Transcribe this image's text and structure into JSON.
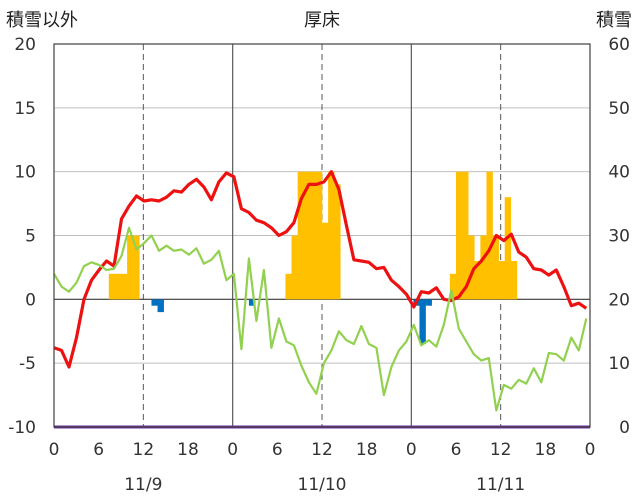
{
  "chart_data": {
    "type": "bar+line",
    "title": "厚床",
    "ylabel_left": "積雪以外",
    "ylabel_right": "積雪",
    "ylim_left": [
      -10,
      20
    ],
    "ylim_right": [
      0,
      60
    ],
    "left_ticks": [
      "20",
      "15",
      "10",
      "5",
      "0",
      "-5",
      "-10"
    ],
    "right_ticks": [
      "60",
      "50",
      "40",
      "30",
      "20",
      "10",
      "0"
    ],
    "x_ticks": [
      "0",
      "6",
      "12",
      "18",
      "0",
      "6",
      "12",
      "18",
      "0",
      "6",
      "12",
      "18",
      "0"
    ],
    "day_labels": [
      "11/9",
      "11/10",
      "11/11"
    ],
    "grid": "dashed vertical at 12h, solid at day boundaries",
    "colors": {
      "red": "#ee1111",
      "green": "#92d050",
      "orange": "#ffc000",
      "blue": "#0070c0",
      "purple": "#7030a0"
    },
    "series": [
      {
        "color": "red",
        "axis": "left",
        "values": [
          -3.8,
          -4,
          -5.3,
          -3,
          0,
          1.5,
          2.3,
          3,
          2.6,
          6.3,
          7.3,
          8.1,
          7.7,
          7.8,
          7.7,
          8,
          8.5,
          8.4,
          9,
          9.4,
          8.8,
          7.8,
          9.2,
          9.9,
          9.6,
          7.1,
          6.8,
          6.2,
          6,
          5.6,
          5,
          5.3,
          6,
          7.9,
          9,
          9,
          9.2,
          10,
          8.6,
          5.8,
          3.1,
          3,
          2.9,
          2.4,
          2.5,
          1.5,
          1,
          0.4,
          -0.6,
          0.6,
          0.5,
          0.9,
          0,
          -0.1,
          0.2,
          1,
          2.4,
          3,
          3.8,
          5,
          4.6,
          5.1,
          3.7,
          3.3,
          2.4,
          2.3,
          1.9,
          2.3,
          1,
          -0.5,
          -0.3,
          -0.7
        ]
      },
      {
        "color": "green",
        "axis": "left",
        "values": [
          2,
          1,
          0.6,
          1.3,
          2.6,
          2.9,
          2.7,
          2.3,
          2.4,
          3.4,
          5.6,
          3.9,
          4.4,
          5,
          3.8,
          4.2,
          3.8,
          3.9,
          3.5,
          4,
          2.8,
          3.1,
          3.8,
          1.5,
          2,
          -3.9,
          3.2,
          -1.7,
          2.3,
          -3.8,
          -1.5,
          -3.3,
          -3.6,
          -5.2,
          -6.5,
          -7.4,
          -5,
          -4,
          -2.5,
          -3.2,
          -3.5,
          -2.1,
          -3.5,
          -3.8,
          -7.5,
          -5.3,
          -4,
          -3.3,
          -2,
          -3.6,
          -3.2,
          -3.7,
          -2,
          0.7,
          -2.3,
          -3.3,
          -4.3,
          -4.8,
          -4.6,
          -8.7,
          -6.7,
          -7,
          -6.3,
          -6.6,
          -5.4,
          -6.5,
          -4.2,
          -4.3,
          -4.8,
          -3,
          -4,
          -1.5
        ]
      },
      {
        "color": "orange",
        "axis": "right",
        "values": [
          0,
          0,
          0,
          0,
          0,
          0,
          0,
          0,
          0,
          24,
          24,
          24,
          30,
          30,
          0,
          0,
          0,
          0,
          0,
          0,
          0,
          0,
          0,
          0,
          0,
          0,
          0,
          0,
          0,
          0,
          0,
          0,
          0,
          0,
          0,
          0,
          0,
          0,
          24,
          30,
          40,
          40,
          40,
          40,
          32,
          40,
          38,
          0,
          0,
          0,
          0,
          0,
          0,
          0,
          0,
          0,
          0,
          0,
          0,
          0,
          0,
          0,
          0,
          0,
          0,
          24,
          40,
          40,
          30,
          26,
          30,
          40,
          30,
          26,
          36,
          26,
          0,
          0,
          0,
          0,
          0,
          0,
          0,
          0,
          0,
          0,
          0,
          0
        ]
      },
      {
        "color": "blue",
        "axis": "left",
        "values": [
          0,
          0,
          0,
          0,
          0,
          0,
          0,
          0,
          0,
          0,
          0,
          0,
          0,
          0,
          0,
          0,
          -0.5,
          -1,
          0,
          0,
          0,
          0,
          0,
          0,
          0,
          0,
          0,
          0,
          0,
          0,
          0,
          0,
          -0.5,
          0,
          0,
          0,
          0,
          0,
          0,
          0,
          0,
          0,
          0,
          0,
          0,
          0,
          0,
          0,
          0,
          0,
          0,
          0,
          0,
          0,
          0,
          0,
          0,
          0,
          0,
          -0.5,
          -3.5,
          -0.5,
          0,
          0,
          0,
          0,
          0,
          0,
          0,
          0,
          0,
          0,
          0,
          0,
          0,
          0,
          0,
          0,
          0,
          0,
          0,
          0,
          0,
          0,
          0,
          0,
          0,
          0
        ]
      },
      {
        "color": "purple",
        "axis": "left",
        "values": [
          -10,
          -10
        ]
      }
    ]
  }
}
